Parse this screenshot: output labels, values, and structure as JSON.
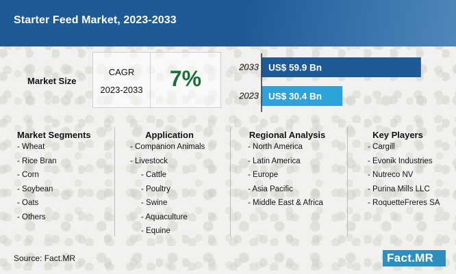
{
  "title": "Starter Feed Market, 2023-2033",
  "market_size_label": "Market Size",
  "cagr": {
    "label": "CAGR",
    "years": "2023-2033",
    "value": "7%"
  },
  "chart_data": {
    "type": "bar",
    "orientation": "horizontal",
    "categories": [
      "2033",
      "2023"
    ],
    "values": [
      59.9,
      30.4
    ],
    "value_labels": [
      "US$ 59.9 Bn",
      "US$ 30.4 Bn"
    ],
    "colors": [
      "#1e5a96",
      "#2ea3d9"
    ],
    "xlim": [
      0,
      62
    ]
  },
  "sections": [
    {
      "title": "Market Segments",
      "items": [
        "- Wheat",
        "- Rice Bran",
        "- Corn",
        "- Soybean",
        "- Oats",
        "- Others"
      ]
    },
    {
      "title": "Application",
      "items": [
        "- Companion Animals",
        "- Livestock",
        "- Cattle",
        "- Poultry",
        "- Swine",
        "- Aquaculture",
        "- Equine"
      ],
      "indent_from": 2
    },
    {
      "title": "Regional Analysis",
      "items": [
        "- North America",
        "- Latin America",
        "- Europe",
        "- Asia Pacific",
        "- Middle East & Africa"
      ]
    },
    {
      "title": "Key Players",
      "items": [
        "- Cargill",
        "- Evonik Industries",
        "- Nutreco NV",
        "- Purina Mills LLC",
        "- RoquetteFreres SA"
      ]
    }
  ],
  "source": "Source: Fact.MR",
  "logo": "Fact.MR"
}
